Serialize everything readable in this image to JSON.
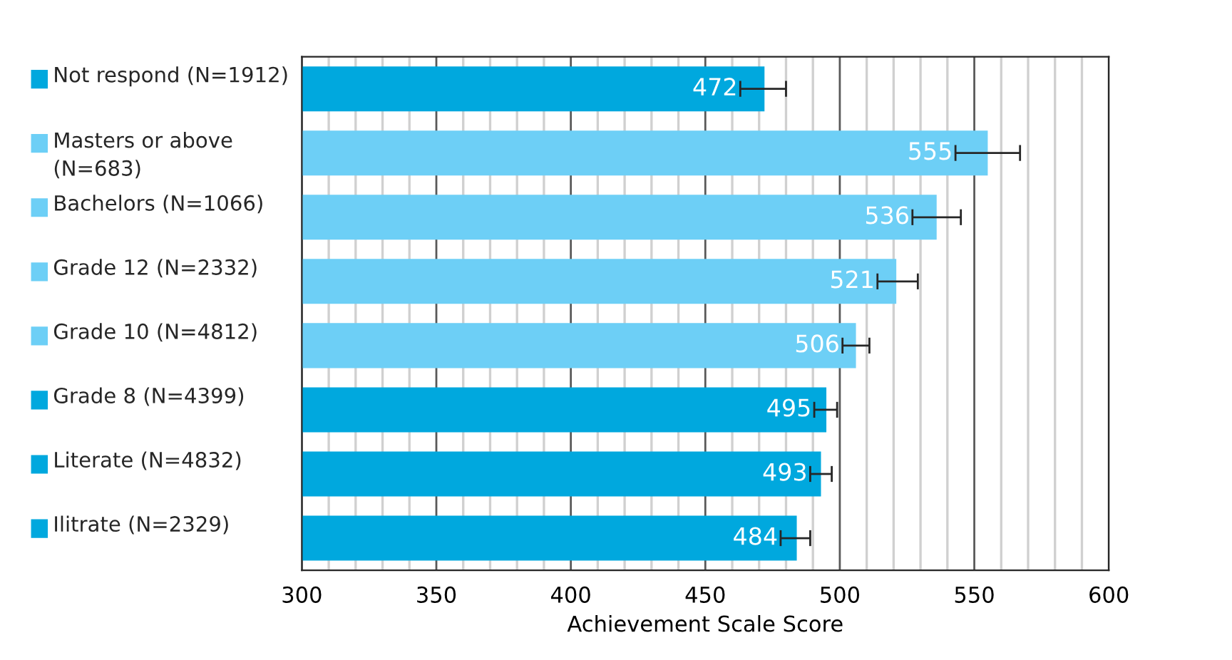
{
  "chart_data": {
    "type": "bar",
    "orientation": "horizontal",
    "xlabel": "Achievement Scale Score",
    "categories": [
      "Not respond (N=1912)",
      "Masters or above\n(N=683)",
      "Bachelors (N=1066)",
      "Grade 12 (N=2332)",
      "Grade 10 (N=4812)",
      "Grade 8 (N=4399)",
      "Literate (N=4832)",
      "Ilitrate (N=2329)"
    ],
    "values": [
      472,
      555,
      536,
      521,
      506,
      495,
      493,
      484
    ],
    "colors": [
      "#00a8de",
      "#6dcff6",
      "#6dcff6",
      "#6dcff6",
      "#6dcff6",
      "#00a8de",
      "#00a8de",
      "#00a8de"
    ],
    "errors": [
      [
        463,
        480
      ],
      [
        543,
        567
      ],
      [
        527,
        545
      ],
      [
        514,
        529
      ],
      [
        501,
        511
      ],
      [
        490.5,
        499
      ],
      [
        489,
        497
      ],
      [
        478,
        489
      ]
    ],
    "data_labels": true,
    "xlim": [
      300,
      600
    ],
    "xticks": [
      300,
      {
        "value": 310,
        "label": null
      },
      {
        "value": 320,
        "label": null
      },
      {
        "value": 330,
        "label": null
      },
      {
        "value": 340,
        "label": null
      },
      350,
      {
        "value": 360,
        "label": null
      },
      {
        "value": 370,
        "label": null
      },
      {
        "value": 380,
        "label": null
      },
      {
        "value": 390,
        "label": null
      },
      400,
      {
        "value": 410,
        "label": null
      },
      {
        "value": 420,
        "label": null
      },
      {
        "value": 430,
        "label": null
      },
      {
        "value": 440,
        "label": null
      },
      450,
      {
        "value": 460,
        "label": null
      },
      {
        "value": 470,
        "label": null
      },
      {
        "value": 480,
        "label": null
      },
      {
        "value": 490,
        "label": null
      },
      500,
      {
        "value": 510,
        "label": null
      },
      {
        "value": 520,
        "label": null
      },
      {
        "value": 530,
        "label": null
      },
      {
        "value": 540,
        "label": null
      },
      550,
      {
        "value": 560,
        "label": null
      },
      {
        "value": 570,
        "label": null
      },
      {
        "value": 580,
        "label": null
      },
      {
        "value": 590,
        "label": null
      },
      600
    ],
    "grid": "x"
  }
}
